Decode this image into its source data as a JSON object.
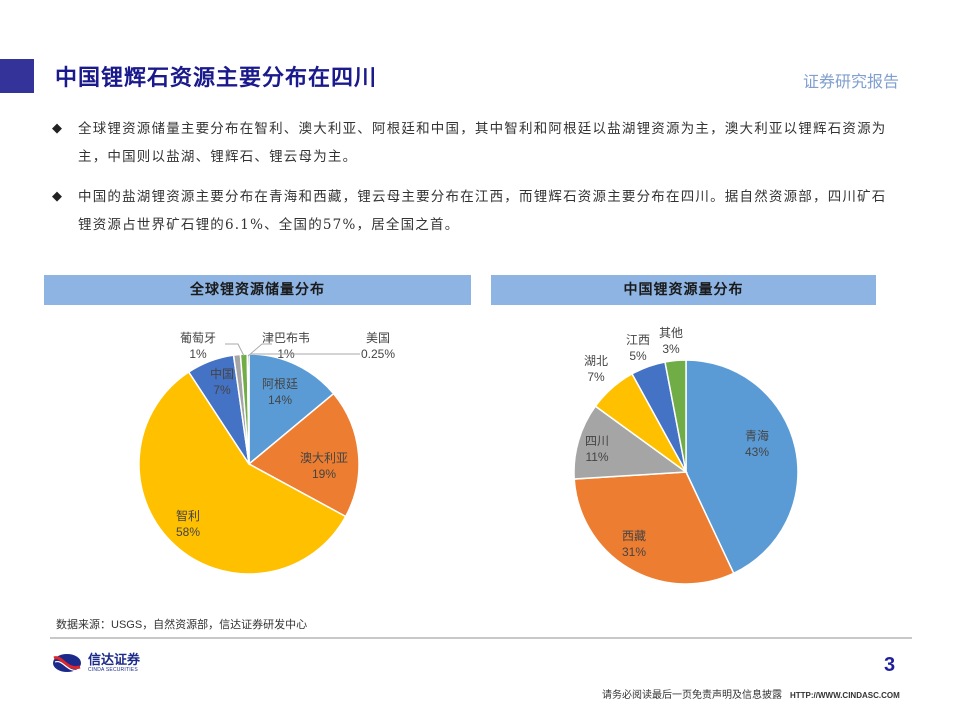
{
  "header": {
    "title": "中国锂辉石资源主要分布在四川",
    "report_tag": "证券研究报告"
  },
  "bullets": [
    {
      "icon": "diamond-bullet-icon",
      "text": "全球锂资源储量主要分布在智利、澳大利亚、阿根廷和中国，其中智利和阿根廷以盐湖锂资源为主，澳大利亚以锂辉石资源为主，中国则以盐湖、锂辉石、锂云母为主。"
    },
    {
      "icon": "diamond-bullet-icon",
      "text": "中国的盐湖锂资源主要分布在青海和西藏，锂云母主要分布在江西，而锂辉石资源主要分布在四川。据自然资源部，四川矿石锂资源占世界矿石锂的6.1%、全国的57%，居全国之首。"
    }
  ],
  "charts": {
    "global": {
      "title": "全球锂资源储量分布"
    },
    "china": {
      "title": "中国锂资源量分布"
    }
  },
  "chart_data": [
    {
      "type": "pie",
      "title": "全球锂资源储量分布",
      "categories": [
        "阿根廷",
        "澳大利亚",
        "智利",
        "中国",
        "葡萄牙",
        "津巴布韦",
        "美国"
      ],
      "values": [
        14,
        19,
        58,
        7,
        1,
        1,
        0.25
      ],
      "labels": [
        "14%",
        "19%",
        "58%",
        "7%",
        "1%",
        "1%",
        "0.25%"
      ],
      "colors": [
        "#5b9bd5",
        "#ed7d31",
        "#ffc000",
        "#4472c4",
        "#a5a5a5",
        "#70ad47",
        "#264478"
      ]
    },
    {
      "type": "pie",
      "title": "中国锂资源量分布",
      "categories": [
        "青海",
        "西藏",
        "四川",
        "湖北",
        "江西",
        "其他"
      ],
      "values": [
        43,
        31,
        11,
        7,
        5,
        3
      ],
      "labels": [
        "43%",
        "31%",
        "11%",
        "7%",
        "5%",
        "3%"
      ],
      "colors": [
        "#5b9bd5",
        "#ed7d31",
        "#a5a5a5",
        "#ffc000",
        "#4472c4",
        "#70ad47"
      ]
    }
  ],
  "footer": {
    "source_prefix": "数据来源：",
    "source_latin": "USGS",
    "source_rest": "，自然资源部，信达证券研发中心",
    "logo_cn": "信达证券",
    "logo_en": "CINDA SECURITIES",
    "page_number": "3",
    "disclaimer": "请务必阅读最后一页免责声明及信息披露",
    "url": "HTTP://WWW.CINDASC.COM"
  }
}
